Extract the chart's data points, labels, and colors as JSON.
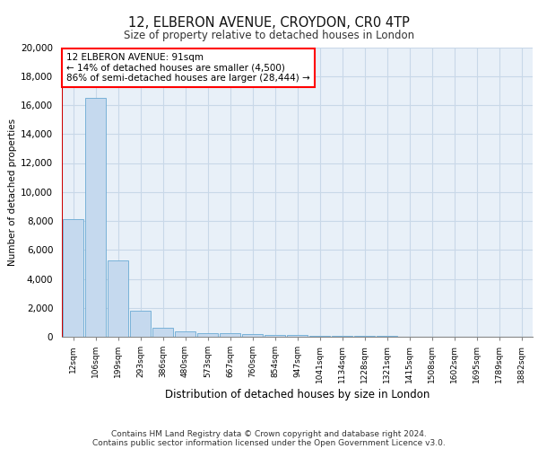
{
  "title1": "12, ELBERON AVENUE, CROYDON, CR0 4TP",
  "title2": "Size of property relative to detached houses in London",
  "xlabel": "Distribution of detached houses by size in London",
  "ylabel": "Number of detached properties",
  "bin_labels": [
    "12sqm",
    "106sqm",
    "199sqm",
    "293sqm",
    "386sqm",
    "480sqm",
    "573sqm",
    "667sqm",
    "760sqm",
    "854sqm",
    "947sqm",
    "1041sqm",
    "1134sqm",
    "1228sqm",
    "1321sqm",
    "1415sqm",
    "1508sqm",
    "1602sqm",
    "1695sqm",
    "1789sqm",
    "1882sqm"
  ],
  "bar_heights": [
    8100,
    16500,
    5300,
    1800,
    650,
    350,
    270,
    220,
    200,
    150,
    100,
    80,
    60,
    50,
    40,
    30,
    25,
    20,
    15,
    10,
    8
  ],
  "bar_color": "#c5d9ee",
  "bar_edge_color": "#6aaad4",
  "grid_color": "#c8d8e8",
  "background_color": "#e8f0f8",
  "vline_color": "#cc0000",
  "annotation_text": "12 ELBERON AVENUE: 91sqm\n← 14% of detached houses are smaller (4,500)\n86% of semi-detached houses are larger (28,444) →",
  "ylim": [
    0,
    20000
  ],
  "yticks": [
    0,
    2000,
    4000,
    6000,
    8000,
    10000,
    12000,
    14000,
    16000,
    18000,
    20000
  ],
  "footer1": "Contains HM Land Registry data © Crown copyright and database right 2024.",
  "footer2": "Contains public sector information licensed under the Open Government Licence v3.0."
}
